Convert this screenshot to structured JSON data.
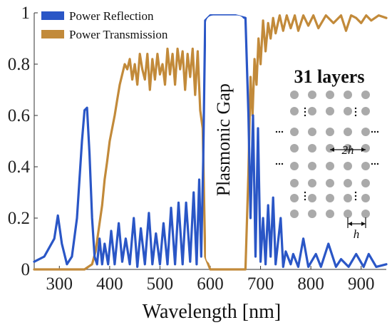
{
  "chart_data": {
    "type": "line",
    "xlabel": "Wavelength [nm]",
    "ylabel": "",
    "xlim": [
      250,
      950
    ],
    "ylim": [
      0,
      1
    ],
    "xticks": [
      300,
      400,
      500,
      600,
      700,
      800,
      900
    ],
    "yticks": [
      0,
      0.2,
      0.4,
      0.6,
      0.8,
      1
    ],
    "ytick_labels": [
      "0",
      "0.2",
      "0.4",
      "0.6",
      "0.8",
      "1"
    ],
    "grid": false,
    "legend_position": "top-left",
    "series": [
      {
        "name": "Power Reflection",
        "color": "#2a56c6",
        "x": [
          250,
          270,
          290,
          297,
          305,
          315,
          325,
          335,
          345,
          350,
          355,
          360,
          365,
          370,
          375,
          380,
          385,
          390,
          397,
          403,
          410,
          418,
          425,
          432,
          440,
          448,
          455,
          462,
          470,
          478,
          485,
          492,
          500,
          507,
          515,
          522,
          530,
          537,
          545,
          552,
          560,
          567,
          573,
          578,
          582,
          586,
          590,
          600,
          620,
          650,
          670,
          676,
          680,
          685,
          690,
          695,
          700,
          705,
          710,
          715,
          720,
          725,
          730,
          740,
          745,
          750,
          760,
          765,
          775,
          785,
          795,
          810,
          820,
          835,
          850,
          860,
          875,
          890,
          905,
          915,
          930,
          950
        ],
        "values": [
          0.03,
          0.05,
          0.12,
          0.21,
          0.1,
          0.02,
          0.05,
          0.2,
          0.5,
          0.62,
          0.63,
          0.45,
          0.2,
          0.05,
          0.02,
          0.12,
          0.02,
          0.1,
          0.02,
          0.15,
          0.02,
          0.18,
          0.03,
          0.12,
          0.02,
          0.2,
          0.01,
          0.16,
          0.02,
          0.22,
          0.02,
          0.14,
          0.02,
          0.18,
          0.02,
          0.24,
          0.02,
          0.26,
          0.02,
          0.26,
          0.03,
          0.3,
          0.02,
          0.35,
          0.05,
          0.42,
          0.97,
          0.99,
          0.99,
          0.99,
          0.98,
          0.6,
          0.2,
          0.6,
          0.05,
          0.55,
          0.03,
          0.2,
          0.02,
          0.25,
          0.05,
          0.28,
          0.02,
          0.2,
          0.01,
          0.07,
          0.02,
          0.06,
          0.01,
          0.12,
          0.01,
          0.06,
          0.01,
          0.1,
          0.01,
          0.04,
          0.01,
          0.06,
          0.01,
          0.06,
          0.01,
          0.02
        ]
      },
      {
        "name": "Power Transmission",
        "color": "#c28a3a",
        "x": [
          250,
          350,
          365,
          372,
          380,
          385,
          390,
          395,
          400,
          405,
          410,
          415,
          420,
          425,
          430,
          435,
          440,
          445,
          450,
          455,
          460,
          465,
          470,
          475,
          480,
          485,
          490,
          495,
          500,
          505,
          510,
          515,
          520,
          525,
          530,
          535,
          540,
          545,
          550,
          555,
          560,
          565,
          570,
          575,
          580,
          585,
          590,
          600,
          670,
          676,
          680,
          684,
          688,
          692,
          696,
          700,
          705,
          710,
          715,
          720,
          725,
          730,
          738,
          745,
          752,
          760,
          768,
          775,
          785,
          795,
          805,
          815,
          830,
          845,
          860,
          870,
          880,
          890,
          900,
          910,
          920,
          935,
          950
        ],
        "values": [
          0,
          0,
          0.02,
          0.07,
          0.18,
          0.25,
          0.35,
          0.42,
          0.5,
          0.55,
          0.6,
          0.66,
          0.72,
          0.76,
          0.8,
          0.78,
          0.82,
          0.74,
          0.8,
          0.72,
          0.84,
          0.78,
          0.74,
          0.84,
          0.7,
          0.82,
          0.74,
          0.84,
          0.76,
          0.8,
          0.72,
          0.86,
          0.76,
          0.84,
          0.72,
          0.86,
          0.78,
          0.85,
          0.7,
          0.84,
          0.75,
          0.86,
          0.68,
          0.85,
          0.62,
          0.55,
          0.05,
          0.0,
          0.0,
          0.38,
          0.75,
          0.6,
          0.82,
          0.72,
          0.9,
          0.8,
          0.97,
          0.85,
          0.96,
          0.9,
          0.98,
          0.92,
          0.99,
          0.93,
          0.99,
          0.94,
          0.99,
          0.93,
          0.99,
          0.95,
          0.99,
          0.94,
          0.99,
          0.96,
          0.99,
          0.93,
          0.99,
          0.98,
          0.96,
          0.99,
          0.97,
          0.99,
          0.98
        ]
      }
    ],
    "annotations": {
      "gap_label": "Plasmonic Gap",
      "layers_label": "31 layers",
      "spacing_label": "2h",
      "pitch_label": "h"
    }
  }
}
